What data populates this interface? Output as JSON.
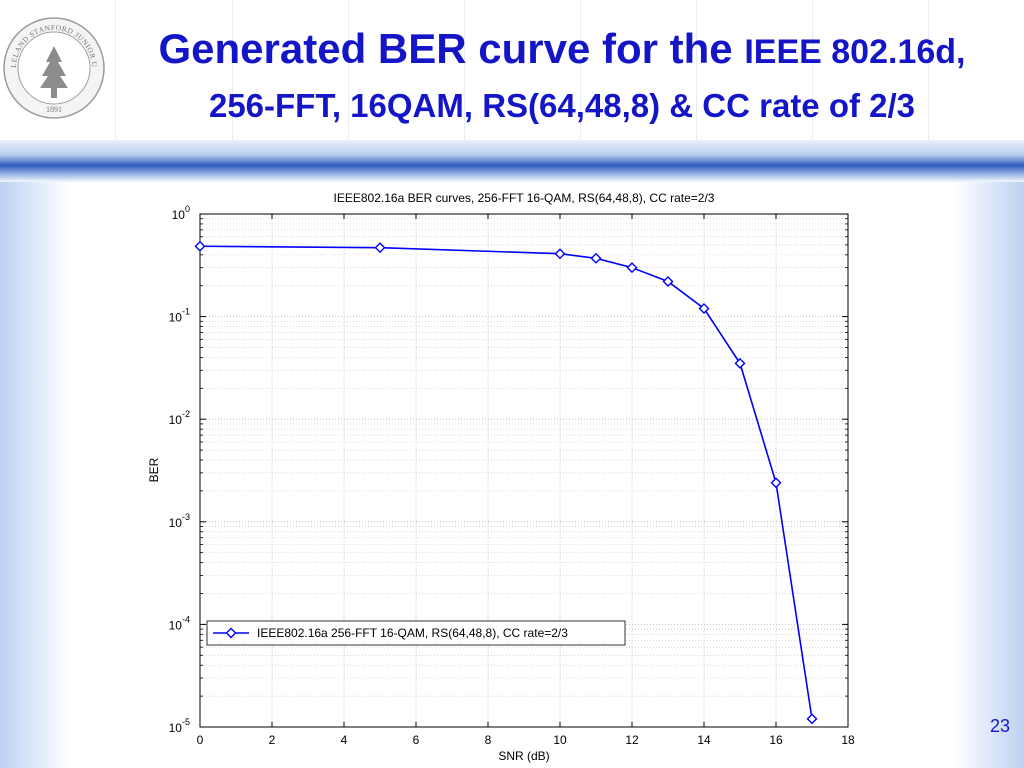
{
  "slide": {
    "title_main": "Generated BER curve for the",
    "title_small": "IEEE 802.16d,",
    "title_line2": "256-FFT, 16QAM, RS(64,48,8) & CC rate of 2/3",
    "page_number": "23",
    "seal_year": "1891",
    "seal_text": "LELAND STANFORD JUNIOR UNIVERSITY",
    "accent_color": "#1515c8"
  },
  "chart_data": {
    "type": "line",
    "title": "IEEE802.16a BER curves, 256-FFT 16-QAM, RS(64,48,8), CC rate=2/3",
    "xlabel": "SNR (dB)",
    "ylabel": "BER",
    "xlim": [
      0,
      18
    ],
    "ylim": [
      1e-05,
      1
    ],
    "yscale": "log",
    "grid": true,
    "legend_position": "lower-left",
    "x_ticks": [
      "0",
      "2",
      "4",
      "6",
      "8",
      "10",
      "12",
      "14",
      "16",
      "18"
    ],
    "y_ticks": [
      {
        "base": "10",
        "exp": "0"
      },
      {
        "base": "10",
        "exp": "-1"
      },
      {
        "base": "10",
        "exp": "-2"
      },
      {
        "base": "10",
        "exp": "-3"
      },
      {
        "base": "10",
        "exp": "-4"
      },
      {
        "base": "10",
        "exp": "-5"
      }
    ],
    "series": [
      {
        "name": "IEEE802.16a 256-FFT 16-QAM, RS(64,48,8), CC rate=2/3",
        "color": "#0000ff",
        "marker": "diamond",
        "x": [
          0,
          5,
          10,
          11,
          12,
          13,
          14,
          15,
          16,
          17
        ],
        "y": [
          0.485,
          0.47,
          0.41,
          0.37,
          0.3,
          0.22,
          0.12,
          0.035,
          0.0024,
          1.2e-05
        ]
      }
    ]
  }
}
